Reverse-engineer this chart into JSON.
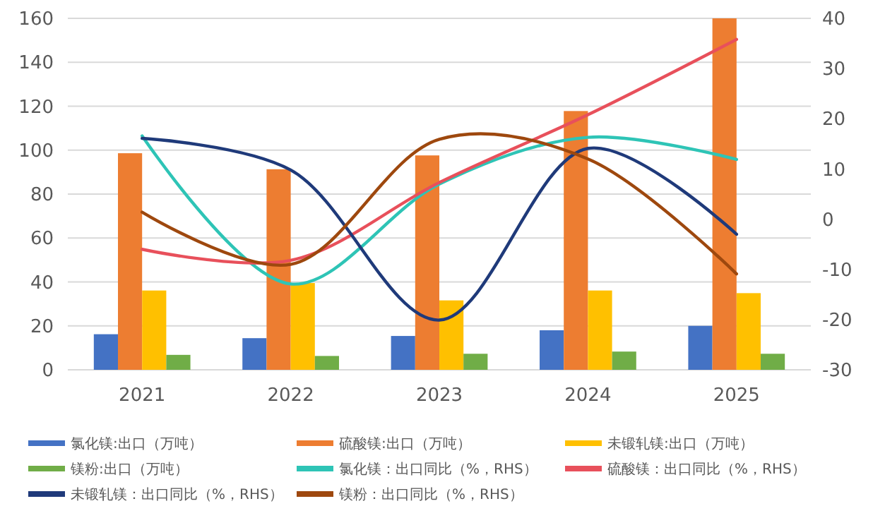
{
  "chart_data": {
    "type": "bar",
    "categories": [
      "2021",
      "2022",
      "2023",
      "2024",
      "2025"
    ],
    "series": [
      {
        "name": "氯化镁:出口（万吨）",
        "color": "#4472c4",
        "values": [
          16.2,
          14.4,
          15.4,
          18,
          20
        ]
      },
      {
        "name": "硫酸镁:出口（万吨）",
        "color": "#ed7d31",
        "values": [
          98.6,
          91.3,
          97.6,
          117.8,
          160
        ]
      },
      {
        "name": "未锻轧镁:出口（万吨）",
        "color": "#ffc000",
        "values": [
          36.1,
          39.5,
          31.6,
          36.1,
          34.9
        ]
      },
      {
        "name": "镁粉:出口（万吨）",
        "color": "#70ad47",
        "values": [
          6.8,
          6.3,
          7.3,
          8.3,
          7.3
        ]
      },
      {
        "name": "氯化镁：出口同比（%，RHS）",
        "type": "line",
        "axis": "y2",
        "color": "#2ec4b6",
        "values": [
          16.6,
          -12.9,
          7,
          16.3,
          11.9
        ]
      },
      {
        "name": "硫酸镁：出口同比（%，RHS）",
        "type": "line",
        "axis": "y2",
        "color": "#e8505b",
        "values": [
          -6,
          -8.2,
          7.3,
          20.8,
          35.8
        ]
      },
      {
        "name": "未锻轧镁：出口同比（%，RHS）",
        "type": "line",
        "axis": "y2",
        "color": "#1f3a7a",
        "values": [
          16.1,
          9.8,
          -20.1,
          14.1,
          -3
        ]
      },
      {
        "name": "镁粉：出口同比（%，RHS）",
        "type": "line",
        "axis": "y2",
        "color": "#9e480e",
        "values": [
          1.4,
          -9,
          15.9,
          12,
          -10.9
        ]
      }
    ],
    "ylim": [
      0,
      160
    ],
    "yticks": [
      0,
      20,
      40,
      60,
      80,
      100,
      120,
      140,
      160
    ],
    "y2lim": [
      -30,
      40
    ],
    "y2ticks": [
      -30,
      -20,
      -10,
      0,
      10,
      20,
      30,
      40
    ],
    "grid": "y",
    "legend": "bottom"
  }
}
